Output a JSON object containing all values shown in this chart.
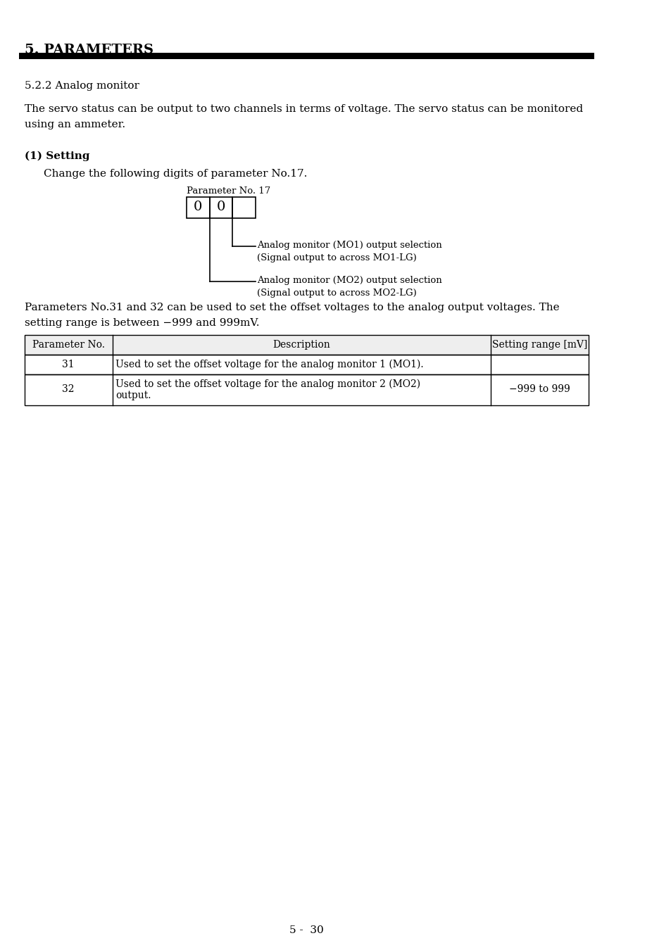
{
  "title": "5. PARAMETERS",
  "section": "5.2.2 Analog monitor",
  "body_text1": "The servo status can be output to two channels in terms of voltage. The servo status can be monitored",
  "body_text2": "using an ammeter.",
  "subsection": "(1) Setting",
  "setting_text": "Change the following digits of parameter No.17.",
  "param_label": "Parameter No. 17",
  "box_values": [
    "0",
    "0"
  ],
  "annotation1_line1": "Analog monitor (MO1) output selection",
  "annotation1_line2": "(Signal output to across MO1-LG)",
  "annotation2_line1": "Analog monitor (MO2) output selection",
  "annotation2_line2": "(Signal output to across MO2-LG)",
  "para_text1": "Parameters No.31 and 32 can be used to set the offset voltages to the analog output voltages. The",
  "para_text2": "setting range is between −999 and 999mV.",
  "table_headers": [
    "Parameter No.",
    "Description",
    "Setting range [mV]"
  ],
  "table_rows": [
    [
      "31",
      "Used to set the offset voltage for the analog monitor 1 (MO1).",
      ""
    ],
    [
      "32",
      "Used to set the offset voltage for the analog monitor 2 (MO2)",
      "−999 to 999",
      "output."
    ]
  ],
  "page_num": "5 -  30",
  "bg_color": "#ffffff",
  "text_color": "#000000",
  "header_bar_color": "#000000"
}
